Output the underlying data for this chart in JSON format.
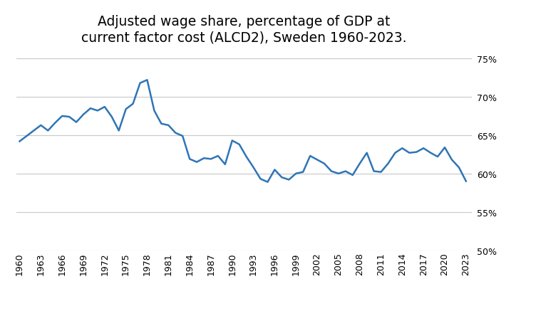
{
  "title": "Adjusted wage share, percentage of GDP at\ncurrent factor cost (ALCD2), Sweden 1960-2023.",
  "years": [
    1960,
    1961,
    1962,
    1963,
    1964,
    1965,
    1966,
    1967,
    1968,
    1969,
    1970,
    1971,
    1972,
    1973,
    1974,
    1975,
    1976,
    1977,
    1978,
    1979,
    1980,
    1981,
    1982,
    1983,
    1984,
    1985,
    1986,
    1987,
    1988,
    1989,
    1990,
    1991,
    1992,
    1993,
    1994,
    1995,
    1996,
    1997,
    1998,
    1999,
    2000,
    2001,
    2002,
    2003,
    2004,
    2005,
    2006,
    2007,
    2008,
    2009,
    2010,
    2011,
    2012,
    2013,
    2014,
    2015,
    2016,
    2017,
    2018,
    2019,
    2020,
    2021,
    2022,
    2023
  ],
  "values": [
    64.2,
    64.9,
    65.6,
    66.3,
    65.6,
    66.6,
    67.5,
    67.4,
    66.7,
    67.7,
    68.5,
    68.2,
    68.7,
    67.4,
    65.6,
    68.4,
    69.1,
    71.8,
    72.2,
    68.2,
    66.5,
    66.3,
    65.3,
    64.9,
    61.9,
    61.5,
    62.0,
    61.9,
    62.3,
    61.2,
    64.3,
    63.8,
    62.2,
    60.8,
    59.3,
    58.9,
    60.5,
    59.5,
    59.2,
    60.0,
    60.2,
    62.3,
    61.8,
    61.3,
    60.3,
    60.0,
    60.3,
    59.8,
    61.3,
    62.7,
    60.3,
    60.2,
    61.3,
    62.7,
    63.3,
    62.7,
    62.8,
    63.3,
    62.7,
    62.2,
    63.4,
    61.8,
    60.8,
    59.0
  ],
  "line_color": "#2E75B6",
  "line_width": 1.8,
  "ylim": [
    50,
    76
  ],
  "yticks": [
    50,
    55,
    60,
    65,
    70,
    75
  ],
  "xtick_years": [
    1960,
    1963,
    1966,
    1969,
    1972,
    1975,
    1978,
    1981,
    1984,
    1987,
    1990,
    1993,
    1996,
    1999,
    2002,
    2005,
    2008,
    2011,
    2014,
    2017,
    2020,
    2023
  ],
  "background_color": "#ffffff",
  "grid_color": "#c8c8c8",
  "title_fontsize": 13.5,
  "tick_fontsize": 9
}
